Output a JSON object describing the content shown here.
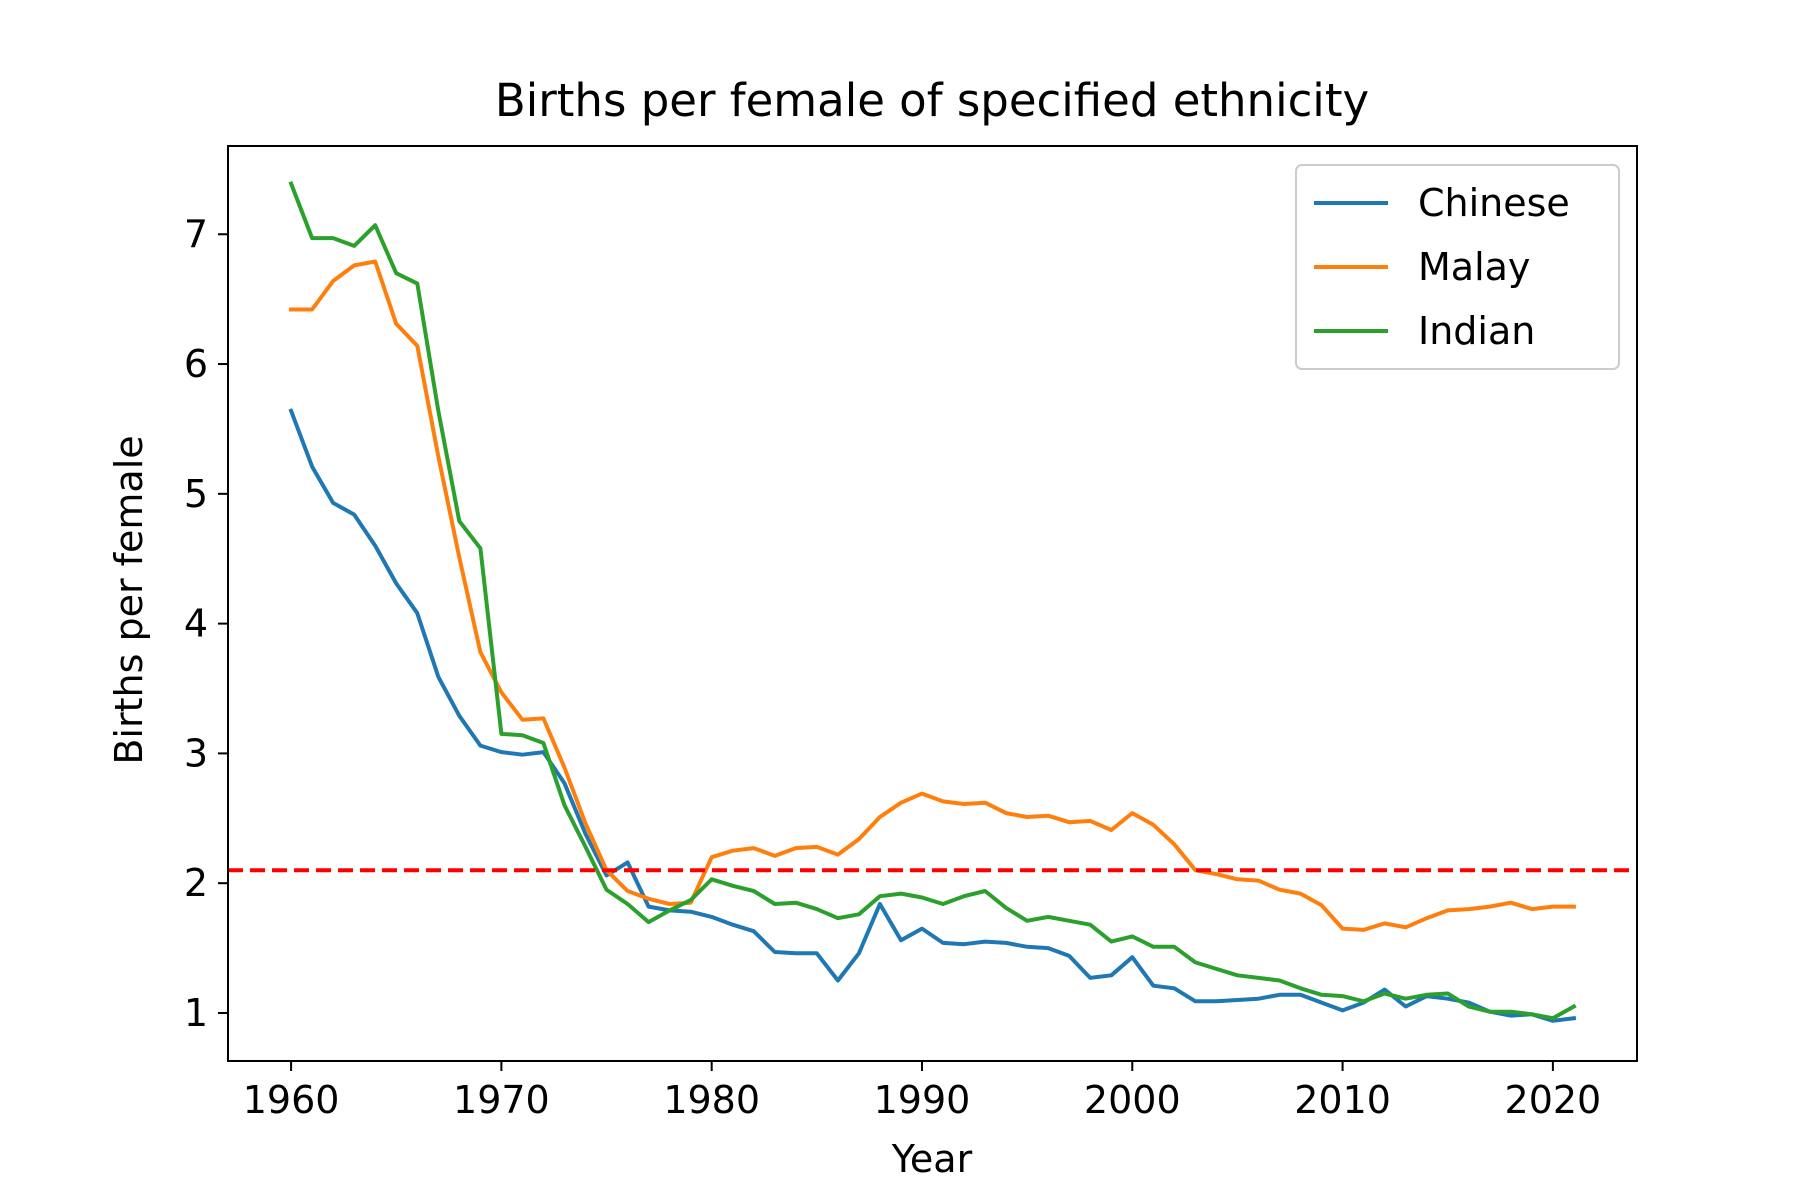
{
  "chart_data": {
    "type": "line",
    "title": "Births per female of specified ethnicity",
    "xlabel": "Year",
    "ylabel": "Births per female",
    "xlim": [
      1957,
      2024
    ],
    "ylim": [
      0.63,
      7.68
    ],
    "xticks": [
      1960,
      1970,
      1980,
      1990,
      2000,
      2010,
      2020
    ],
    "yticks": [
      1,
      2,
      3,
      4,
      5,
      6,
      7
    ],
    "grid": false,
    "legend_position": "top-right",
    "reference_line": {
      "y": 2.1,
      "color": "#ff0000",
      "style": "dashed"
    },
    "x": [
      1960,
      1961,
      1962,
      1963,
      1964,
      1965,
      1966,
      1967,
      1968,
      1969,
      1970,
      1971,
      1972,
      1973,
      1974,
      1975,
      1976,
      1977,
      1978,
      1979,
      1980,
      1981,
      1982,
      1983,
      1984,
      1985,
      1986,
      1987,
      1988,
      1989,
      1990,
      1991,
      1992,
      1993,
      1994,
      1995,
      1996,
      1997,
      1998,
      1999,
      2000,
      2001,
      2002,
      2003,
      2004,
      2005,
      2006,
      2007,
      2008,
      2009,
      2010,
      2011,
      2012,
      2013,
      2014,
      2015,
      2016,
      2017,
      2018,
      2019,
      2020,
      2021
    ],
    "series": [
      {
        "name": "Chinese",
        "color": "#1f77b4",
        "values": [
          5.64,
          5.21,
          4.93,
          4.84,
          4.6,
          4.31,
          4.08,
          3.59,
          3.29,
          3.06,
          3.01,
          2.99,
          3.01,
          2.77,
          2.38,
          2.06,
          2.16,
          1.82,
          1.79,
          1.78,
          1.74,
          1.68,
          1.63,
          1.47,
          1.46,
          1.46,
          1.25,
          1.46,
          1.84,
          1.56,
          1.65,
          1.54,
          1.53,
          1.55,
          1.54,
          1.51,
          1.5,
          1.44,
          1.27,
          1.29,
          1.43,
          1.21,
          1.19,
          1.09,
          1.09,
          1.1,
          1.11,
          1.14,
          1.14,
          1.08,
          1.02,
          1.08,
          1.18,
          1.05,
          1.13,
          1.11,
          1.08,
          1.01,
          0.98,
          0.99,
          0.94,
          0.96
        ]
      },
      {
        "name": "Malay",
        "color": "#ff7f0e",
        "values": [
          6.42,
          6.42,
          6.64,
          6.76,
          6.79,
          6.31,
          6.14,
          5.29,
          4.51,
          3.78,
          3.47,
          3.26,
          3.27,
          2.89,
          2.46,
          2.1,
          1.94,
          1.88,
          1.84,
          1.85,
          2.2,
          2.25,
          2.27,
          2.21,
          2.27,
          2.28,
          2.22,
          2.34,
          2.51,
          2.62,
          2.69,
          2.63,
          2.61,
          2.62,
          2.54,
          2.51,
          2.52,
          2.47,
          2.48,
          2.41,
          2.54,
          2.45,
          2.3,
          2.1,
          2.07,
          2.03,
          2.02,
          1.95,
          1.92,
          1.83,
          1.65,
          1.64,
          1.69,
          1.66,
          1.73,
          1.79,
          1.8,
          1.82,
          1.85,
          1.8,
          1.82,
          1.82
        ]
      },
      {
        "name": "Indian",
        "color": "#2ca02c",
        "values": [
          7.39,
          6.97,
          6.97,
          6.91,
          7.07,
          6.7,
          6.62,
          5.64,
          4.79,
          4.58,
          3.15,
          3.14,
          3.08,
          2.6,
          2.28,
          1.95,
          1.84,
          1.7,
          1.79,
          1.87,
          2.03,
          1.98,
          1.94,
          1.84,
          1.85,
          1.8,
          1.73,
          1.76,
          1.9,
          1.92,
          1.89,
          1.84,
          1.9,
          1.94,
          1.81,
          1.71,
          1.74,
          1.71,
          1.68,
          1.55,
          1.59,
          1.51,
          1.51,
          1.39,
          1.34,
          1.29,
          1.27,
          1.25,
          1.19,
          1.14,
          1.13,
          1.09,
          1.15,
          1.11,
          1.14,
          1.15,
          1.05,
          1.01,
          1.01,
          0.99,
          0.96,
          1.05
        ]
      }
    ]
  }
}
